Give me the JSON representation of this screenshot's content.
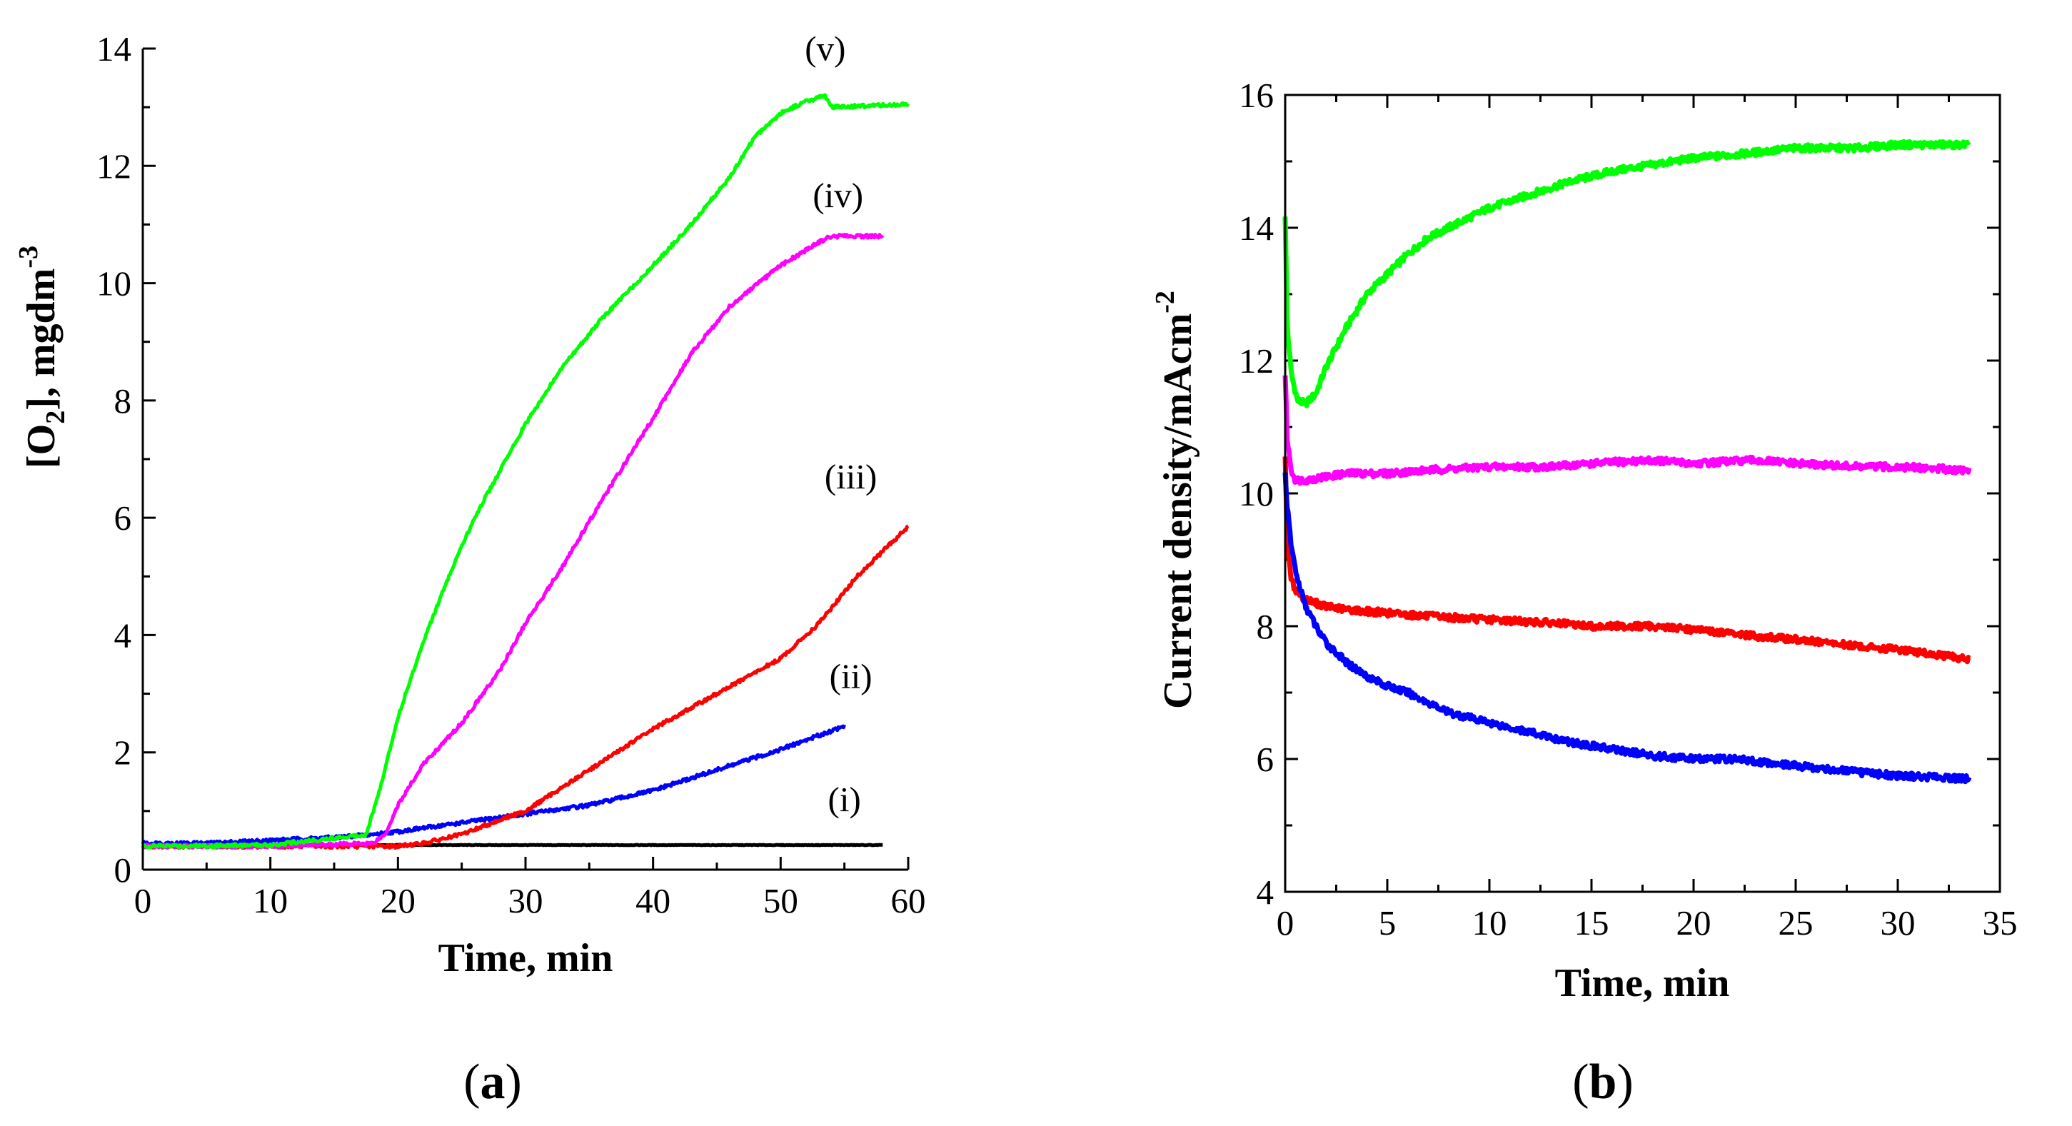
{
  "chart_data": [
    {
      "panel": "a",
      "type": "line",
      "panel_label": "(a)",
      "panel_label_parts": {
        "open": "(",
        "letter": "a",
        "close": ")"
      },
      "xlabel": "Time, min",
      "ylabel_main": "[O",
      "ylabel_sub": "2",
      "ylabel_rest": "], mgdm",
      "ylabel_sup": "-3",
      "xlim": [
        0,
        60
      ],
      "ylim": [
        0,
        14
      ],
      "xticks": [
        0,
        10,
        20,
        30,
        40,
        50,
        60
      ],
      "yticks": [
        0,
        2,
        4,
        6,
        8,
        10,
        12,
        14
      ],
      "series": [
        {
          "name": "(i)",
          "color": "#000000",
          "x": [
            0,
            10,
            20,
            30,
            40,
            50,
            58
          ],
          "y": [
            0.42,
            0.42,
            0.42,
            0.42,
            0.42,
            0.42,
            0.42
          ]
        },
        {
          "name": "(ii)",
          "color": "#0000ff",
          "x": [
            0,
            5,
            10,
            15,
            18,
            20,
            25,
            30,
            35,
            40,
            45,
            50,
            55
          ],
          "y": [
            0.45,
            0.45,
            0.5,
            0.55,
            0.6,
            0.65,
            0.8,
            0.95,
            1.1,
            1.35,
            1.7,
            2.05,
            2.45
          ]
        },
        {
          "name": "(iii)",
          "color": "#ff0000",
          "x": [
            0,
            10,
            20,
            22,
            25,
            28,
            30,
            35,
            40,
            45,
            50,
            53,
            56,
            60
          ],
          "y": [
            0.4,
            0.4,
            0.4,
            0.45,
            0.6,
            0.85,
            1.0,
            1.7,
            2.4,
            3.0,
            3.6,
            4.2,
            5.0,
            5.85
          ]
        },
        {
          "name": "(iv)",
          "color": "#ff00ff",
          "x": [
            0,
            10,
            18,
            19,
            20,
            22,
            25,
            28,
            30,
            33,
            36,
            40,
            43,
            46,
            50,
            53,
            54,
            58
          ],
          "y": [
            0.4,
            0.4,
            0.45,
            0.6,
            1.1,
            1.8,
            2.5,
            3.4,
            4.2,
            5.2,
            6.3,
            7.7,
            8.8,
            9.6,
            10.3,
            10.7,
            10.8,
            10.8
          ]
        },
        {
          "name": "(v)",
          "color": "#00ff00",
          "x": [
            0,
            10,
            17.5,
            18.5,
            20,
            22,
            24,
            26,
            28,
            30,
            33,
            36,
            40,
            43,
            46,
            48,
            50,
            52,
            53.5,
            54,
            60
          ],
          "y": [
            0.4,
            0.42,
            0.6,
            1.3,
            2.6,
            3.9,
            5.0,
            6.0,
            6.8,
            7.6,
            8.6,
            9.4,
            10.3,
            11.0,
            11.8,
            12.5,
            12.9,
            13.1,
            13.2,
            13.0,
            13.05
          ]
        }
      ],
      "annotations": [
        {
          "text": "(i)",
          "x": 55,
          "y": 1.0
        },
        {
          "text": "(ii)",
          "x": 55.5,
          "y": 3.1
        },
        {
          "text": "(iii)",
          "x": 55.5,
          "y": 6.5
        },
        {
          "text": "(iv)",
          "x": 54.5,
          "y": 11.3
        },
        {
          "text": "(v)",
          "x": 53.5,
          "y": 13.8
        }
      ]
    },
    {
      "panel": "b",
      "type": "line",
      "panel_label": "(b)",
      "panel_label_parts": {
        "open": "(",
        "letter": "b",
        "close": ")"
      },
      "xlabel": "Time, min",
      "ylabel_main": "Current density/mAcm",
      "ylabel_sup": "-2",
      "xlim": [
        0,
        35
      ],
      "ylim": [
        4,
        16
      ],
      "xticks": [
        0,
        5,
        10,
        15,
        20,
        25,
        30,
        35
      ],
      "yticks": [
        4,
        6,
        8,
        10,
        12,
        14,
        16
      ],
      "series": [
        {
          "name": "green",
          "color": "#00ff00",
          "x": [
            0,
            0.1,
            0.3,
            0.6,
            1,
            1.5,
            2,
            3,
            4,
            5,
            6,
            7,
            8,
            10,
            12,
            14,
            16,
            18,
            20,
            22,
            25,
            28,
            30,
            33.5
          ],
          "y": [
            14.2,
            12.5,
            11.8,
            11.4,
            11.35,
            11.5,
            11.9,
            12.5,
            13.0,
            13.3,
            13.6,
            13.85,
            14.0,
            14.3,
            14.5,
            14.7,
            14.85,
            14.95,
            15.05,
            15.1,
            15.2,
            15.2,
            15.25,
            15.25
          ]
        },
        {
          "name": "magenta",
          "color": "#ff00ff",
          "x": [
            0,
            0.1,
            0.3,
            0.5,
            1,
            2,
            3,
            5,
            7,
            10,
            13,
            15,
            18,
            20,
            23,
            25,
            28,
            30,
            33.5
          ],
          "y": [
            11.8,
            10.8,
            10.35,
            10.2,
            10.2,
            10.25,
            10.3,
            10.3,
            10.35,
            10.4,
            10.4,
            10.45,
            10.5,
            10.45,
            10.5,
            10.45,
            10.4,
            10.4,
            10.35
          ]
        },
        {
          "name": "red",
          "color": "#ff0000",
          "x": [
            0,
            0.1,
            0.3,
            0.5,
            1,
            2,
            3,
            5,
            7,
            10,
            13,
            15,
            18,
            20,
            23,
            25,
            28,
            30,
            33.5
          ],
          "y": [
            10.6,
            9.2,
            8.7,
            8.55,
            8.4,
            8.3,
            8.25,
            8.2,
            8.15,
            8.1,
            8.05,
            8.0,
            8.0,
            7.95,
            7.85,
            7.8,
            7.7,
            7.65,
            7.5
          ]
        },
        {
          "name": "blue",
          "color": "#0000ff",
          "x": [
            0,
            0.1,
            0.3,
            0.6,
            1,
            1.5,
            2,
            3,
            4,
            5,
            6,
            7,
            8,
            10,
            12,
            14,
            16,
            18,
            20,
            22,
            25,
            28,
            30,
            33.5
          ],
          "y": [
            10.3,
            9.8,
            9.2,
            8.7,
            8.3,
            8.0,
            7.75,
            7.45,
            7.25,
            7.1,
            7.0,
            6.85,
            6.7,
            6.55,
            6.4,
            6.25,
            6.15,
            6.05,
            6.0,
            6.0,
            5.9,
            5.8,
            5.75,
            5.7
          ]
        }
      ]
    }
  ]
}
